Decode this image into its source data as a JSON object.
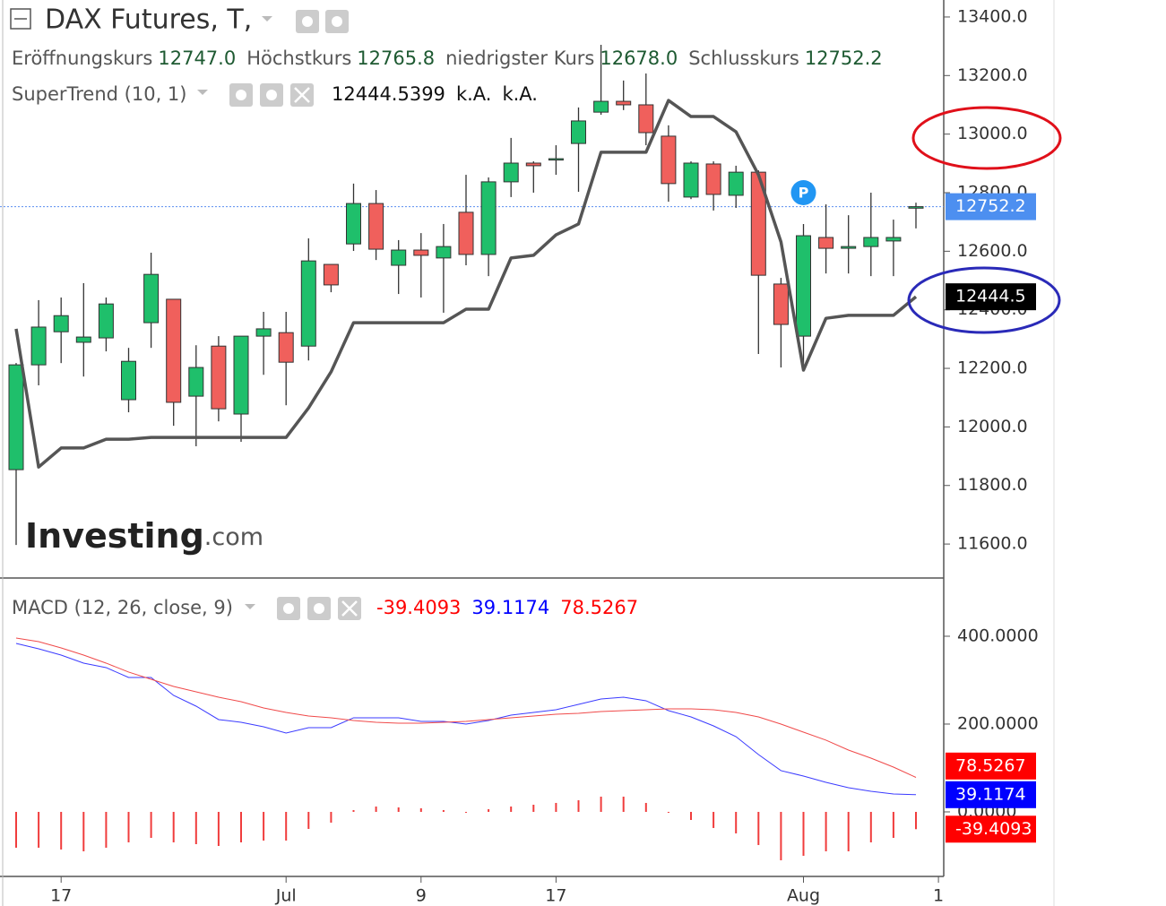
{
  "chart_data": [
    {
      "type": "candlestick",
      "title": "DAX Futures, T,",
      "ohlc_legend": [
        {
          "label": "Eröffnungskurs",
          "value": "12747.0"
        },
        {
          "label": "Höchstkurs",
          "value": "12765.8"
        },
        {
          "label": "niedrigster Kurs",
          "value": "12678.0"
        },
        {
          "label": "Schlusskurs",
          "value": "12752.2"
        }
      ],
      "open": [
        11854,
        12212,
        12325,
        12289,
        12304,
        12093,
        12356,
        12436,
        12105,
        12276,
        12044,
        12310,
        12322,
        12276,
        12555,
        12625,
        12763,
        12552,
        12604,
        12577,
        12733,
        12589,
        12837,
        12901,
        12913,
        12968,
        13075,
        13112,
        13100,
        12993,
        12785,
        12898,
        12791,
        12870,
        12488,
        12310,
        12647,
        12610,
        12616,
        12635,
        12747,
        null
      ],
      "high": [
        12218,
        12433,
        12442,
        12491,
        12442,
        12270,
        12595,
        12436,
        12279,
        12310,
        12310,
        12393,
        12393,
        12644,
        12555,
        12831,
        12809,
        12638,
        12662,
        12693,
        12861,
        12852,
        12987,
        12907,
        12962,
        13091,
        13305,
        13183,
        13207,
        13030,
        12907,
        12907,
        12892,
        12876,
        12509,
        12693,
        12760,
        12723,
        12800,
        12708,
        12765.8,
        null
      ],
      "low": [
        11597,
        12142,
        12218,
        12172,
        12258,
        12050,
        12270,
        12004,
        11934,
        12019,
        11949,
        12178,
        12074,
        12227,
        12460,
        12601,
        12570,
        12454,
        12442,
        12390,
        12552,
        12515,
        12785,
        12800,
        12861,
        12803,
        13066,
        13082,
        12962,
        12769,
        12778,
        12739,
        12748,
        12249,
        12203,
        12209,
        12524,
        12524,
        12515,
        12515,
        12678,
        null
      ],
      "close": [
        12212,
        12341,
        12380,
        12307,
        12420,
        12224,
        12521,
        12084,
        12203,
        12062,
        12310,
        12335,
        12221,
        12567,
        12485,
        12763,
        12607,
        12604,
        12586,
        12616,
        12589,
        12837,
        12901,
        12892,
        12916,
        13045,
        13112,
        13100,
        13005,
        12831,
        12901,
        12794,
        12870,
        12518,
        12350,
        12653,
        12610,
        12616,
        12647,
        12647,
        12752.2,
        null
      ],
      "up_color": "#1fbf6b",
      "down_color": "#f0605c",
      "overlay": {
        "name": "SuperTrend (10, 1)",
        "color": "#555555",
        "legend_values": [
          "12444.5399",
          "k.A.",
          "k.A."
        ],
        "values": [
          12335,
          11863,
          11928,
          11928,
          11958,
          11958,
          11964,
          11964,
          11964,
          11964,
          11964,
          11964,
          11964,
          12065,
          12188,
          12356,
          12356,
          12356,
          12356,
          12356,
          12402,
          12402,
          12577,
          12586,
          12656,
          12693,
          12938,
          12938,
          12938,
          13115,
          13060,
          13060,
          13008,
          12861,
          12632,
          12194,
          12371,
          12381,
          12381,
          12381,
          12444.5399,
          null
        ]
      },
      "ylim": [
        11484,
        13458
      ],
      "yticks": [
        {
          "value": 11600,
          "label": "11600.0"
        },
        {
          "value": 11800,
          "label": "11800.0"
        },
        {
          "value": 12000,
          "label": "12000.0"
        },
        {
          "value": 12200,
          "label": "12200.0"
        },
        {
          "value": 12400,
          "label": "12400.0"
        },
        {
          "value": 12600,
          "label": "12600.0"
        },
        {
          "value": 12800,
          "label": "12800.0"
        },
        {
          "value": 13000,
          "label": "13000.0"
        },
        {
          "value": 13200,
          "label": "13200.0"
        },
        {
          "value": 13400,
          "label": "13400.0"
        }
      ],
      "price_line": 12752.2,
      "badges": [
        {
          "value": 12752.2,
          "label": "12752.2",
          "color": "#4d8ff0"
        },
        {
          "value": 12444.5,
          "label": "12444.5",
          "color": "#000000"
        }
      ],
      "marker": {
        "label": "P",
        "index": 35,
        "value": 12800
      },
      "watermark": [
        "Investing",
        ".com"
      ]
    },
    {
      "type": "macd",
      "title": "MACD (12, 26, close, 9)",
      "legend": [
        {
          "label": "-39.4093",
          "color": "#ff0000"
        },
        {
          "label": "39.1174",
          "color": "#0000ff"
        },
        {
          "label": "78.5267",
          "color": "#ff0000"
        }
      ],
      "categories": [
        null,
        null,
        "17",
        null,
        null,
        null,
        null,
        null,
        null,
        null,
        null,
        null,
        "Jul",
        null,
        null,
        null,
        null,
        null,
        "9",
        null,
        null,
        null,
        null,
        null,
        "17",
        null,
        null,
        null,
        null,
        null,
        null,
        null,
        null,
        null,
        null,
        "Aug",
        null,
        null,
        null,
        null,
        null,
        "1"
      ],
      "series": [
        {
          "style": "histogram",
          "color": "#f03c3c",
          "values": [
            -81.6,
            -81.6,
            -85.7,
            -89.8,
            -81.6,
            -69.4,
            -59.2,
            -69.4,
            -73.5,
            -77.6,
            -69.4,
            -65.3,
            -65.3,
            -38.8,
            -24.5,
            4.1,
            12.2,
            10.2,
            8.2,
            4.1,
            -2.0,
            6.1,
            12.2,
            16.3,
            20.4,
            26.5,
            34.7,
            34.7,
            20.4,
            -2.0,
            -18.4,
            -36.7,
            -49.0,
            -75.5,
            -110.2,
            -100.0,
            -89.8,
            -89.8,
            -69.4,
            -59.2,
            -39.4093,
            null
          ]
        },
        {
          "style": "line",
          "color": "#3b3bff",
          "values": [
            383.7,
            371.4,
            357.1,
            338.8,
            328.6,
            306.1,
            306.1,
            265.3,
            240.8,
            210.2,
            204.1,
            193.9,
            179.6,
            191.8,
            191.8,
            214.3,
            214.3,
            214.3,
            206.1,
            206.1,
            200,
            208.2,
            220.4,
            226.5,
            232.7,
            244.9,
            257.1,
            261.2,
            253.1,
            230.6,
            216.3,
            195.9,
            171.4,
            130.6,
            93.9,
            81.6,
            67.3,
            55.1,
            46.9,
            40.8,
            39.1174,
            null
          ]
        },
        {
          "style": "line",
          "color": "#f04a4a",
          "values": [
            395.9,
            387.8,
            373.5,
            357.1,
            338.8,
            318.4,
            302.0,
            285.7,
            273.5,
            261.2,
            251.0,
            236.7,
            226.5,
            218.4,
            214.3,
            208.2,
            204.1,
            202.0,
            202.0,
            204.1,
            206.1,
            210.2,
            214.3,
            218.4,
            222.4,
            224.5,
            228.6,
            230.6,
            232.7,
            234.7,
            234.7,
            232.7,
            226.5,
            216.3,
            200,
            181.6,
            163.3,
            140.8,
            122.4,
            102.0,
            78.5267,
            null
          ]
        }
      ],
      "ylim": [
        -147,
        526.5
      ],
      "yticks": [
        {
          "value": 400,
          "label": "400.0000"
        },
        {
          "value": 200,
          "label": "200.0000"
        },
        {
          "value": 0,
          "label": "0.0000"
        }
      ],
      "badges": [
        {
          "value": 78.5267,
          "label": "78.5267",
          "color": "#ff0000"
        },
        {
          "value": 39.1174,
          "label": "39.1174",
          "color": "#0000ff"
        },
        {
          "value": -39.4093,
          "label": "-39.4093",
          "color": "#ff0000"
        }
      ]
    }
  ]
}
